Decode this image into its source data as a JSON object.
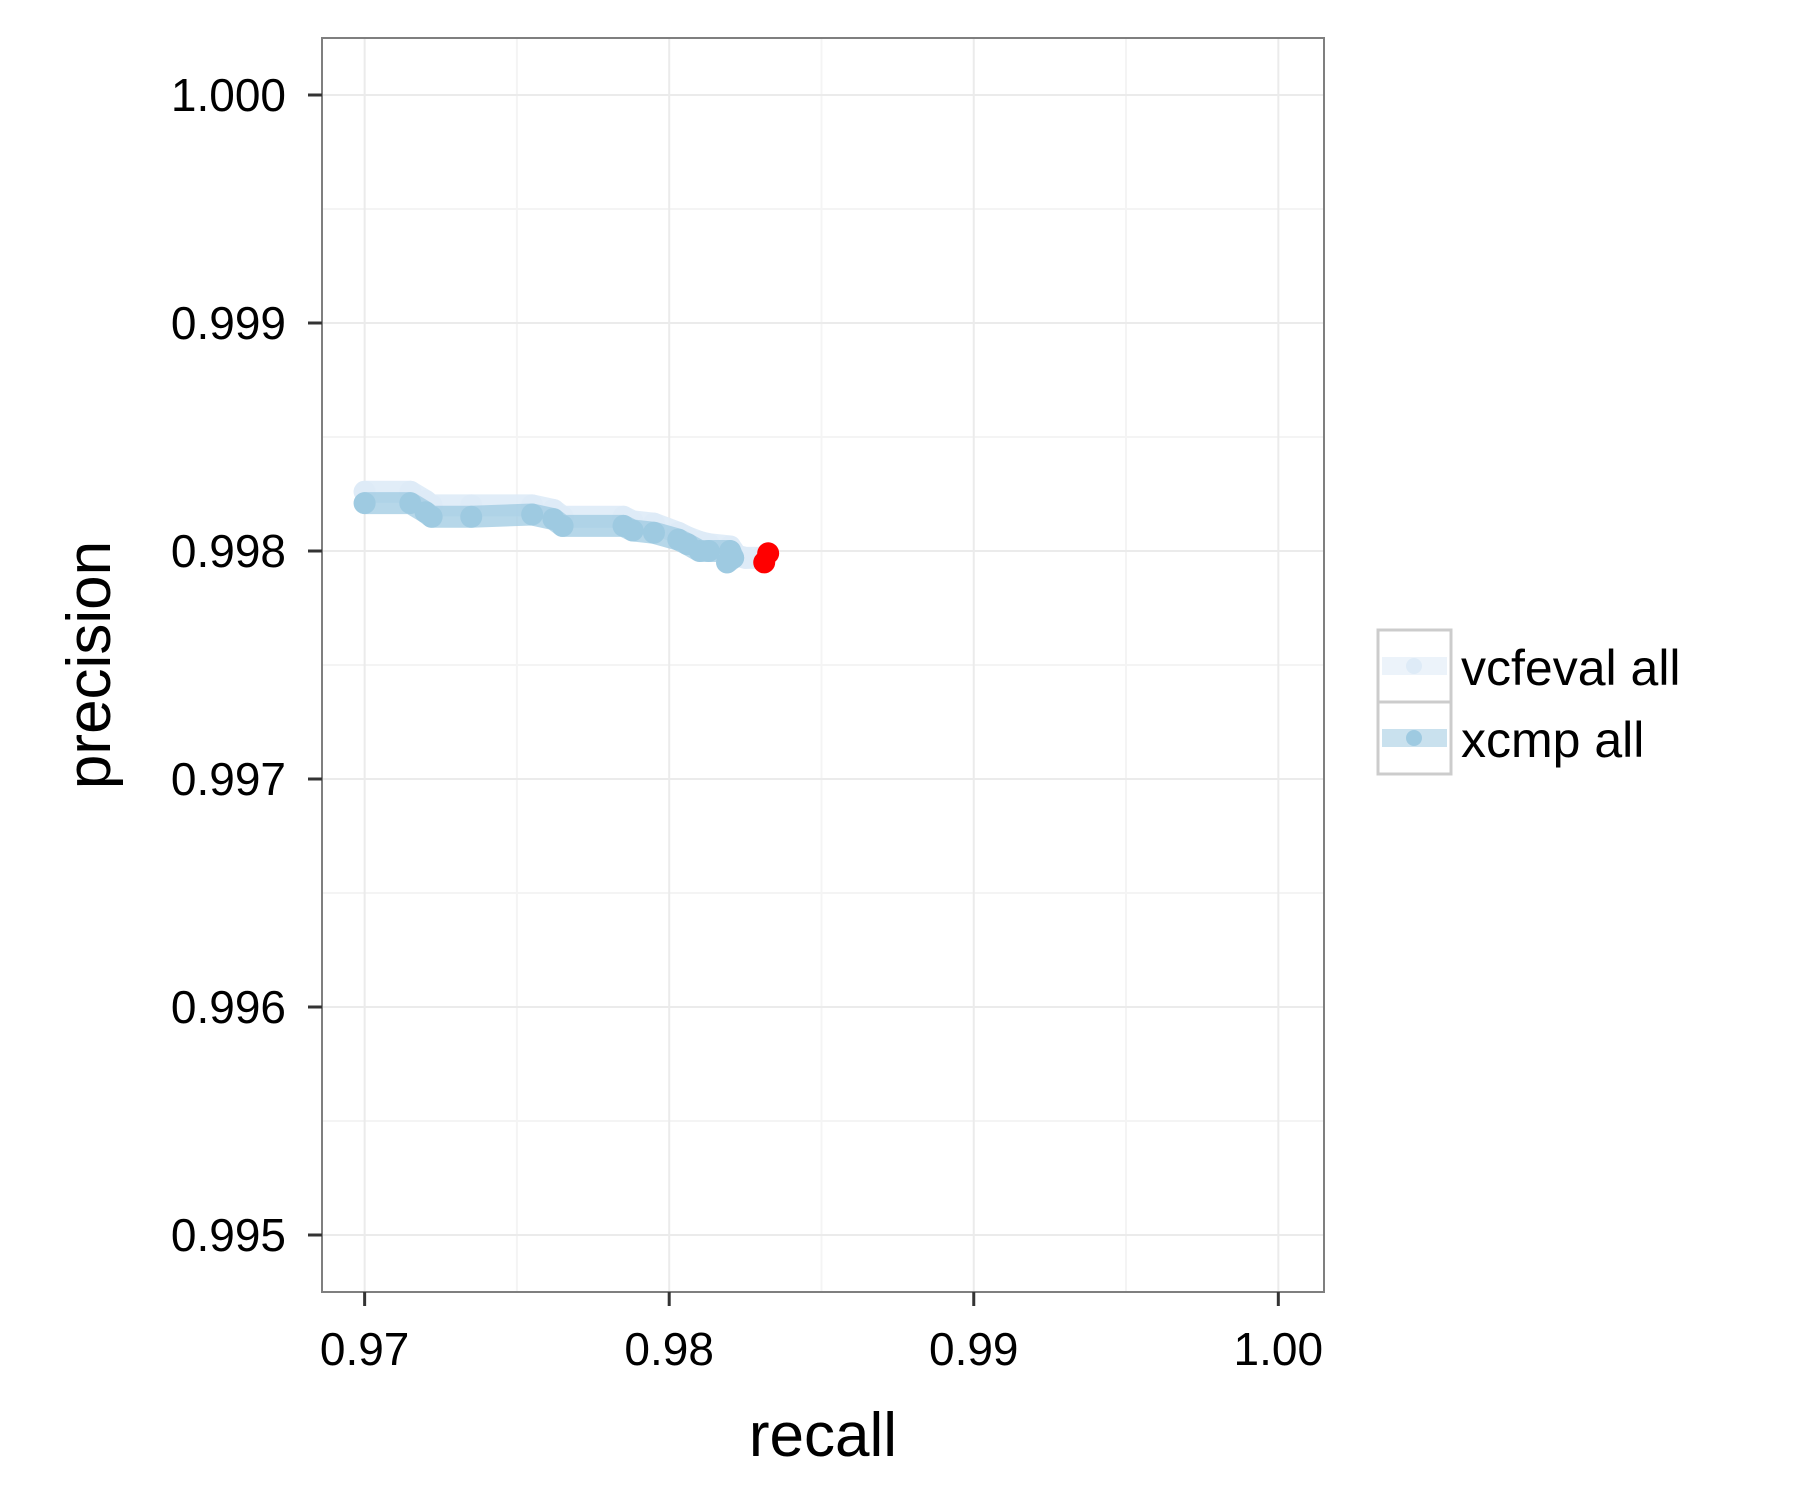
{
  "chart_data": {
    "type": "line",
    "title": "",
    "xlabel": "recall",
    "ylabel": "precision",
    "xlim": [
      0.9686,
      1.0015
    ],
    "ylim": [
      0.99475,
      1.00025
    ],
    "x_ticks": [
      0.97,
      0.98,
      0.99,
      1.0
    ],
    "x_tick_labels": [
      "0.97",
      "0.98",
      "0.99",
      "1.00"
    ],
    "y_ticks": [
      0.995,
      0.996,
      0.997,
      0.998,
      0.999,
      1.0
    ],
    "y_tick_labels": [
      "0.995",
      "0.996",
      "0.997",
      "0.998",
      "0.999",
      "1.000"
    ],
    "grid": true,
    "legend_position": "right",
    "series": [
      {
        "name": "vcfeval all",
        "color": "#deebf7",
        "x": [
          0.97,
          0.9715,
          0.972,
          0.9722,
          0.9735,
          0.9755,
          0.9762,
          0.9765,
          0.9785,
          0.9788,
          0.9795,
          0.9803,
          0.9806,
          0.981,
          0.9813,
          0.982,
          0.9821,
          0.9822,
          0.9825,
          0.983
        ],
        "y": [
          0.99826,
          0.99826,
          0.99822,
          0.9982,
          0.9982,
          0.9982,
          0.99818,
          0.99815,
          0.99815,
          0.99813,
          0.99812,
          0.99808,
          0.99806,
          0.99804,
          0.99803,
          0.99802,
          0.998,
          0.99798,
          0.99797,
          0.99797
        ]
      },
      {
        "name": "xcmp all",
        "color": "#9ecae1",
        "x": [
          0.97,
          0.9715,
          0.972,
          0.9722,
          0.9735,
          0.9755,
          0.9762,
          0.9765,
          0.9785,
          0.9788,
          0.9795,
          0.9803,
          0.9806,
          0.981,
          0.9813,
          0.982,
          0.9821,
          0.9819
        ],
        "y": [
          0.99821,
          0.99821,
          0.99817,
          0.99815,
          0.99815,
          0.99816,
          0.99814,
          0.99811,
          0.99811,
          0.99809,
          0.99808,
          0.99805,
          0.99803,
          0.998,
          0.998,
          0.998,
          0.99797,
          0.99795
        ]
      }
    ],
    "highlight_points": {
      "color": "#ff0000",
      "x": [
        0.98325,
        0.98312
      ],
      "y": [
        0.99799,
        0.99795
      ]
    }
  }
}
